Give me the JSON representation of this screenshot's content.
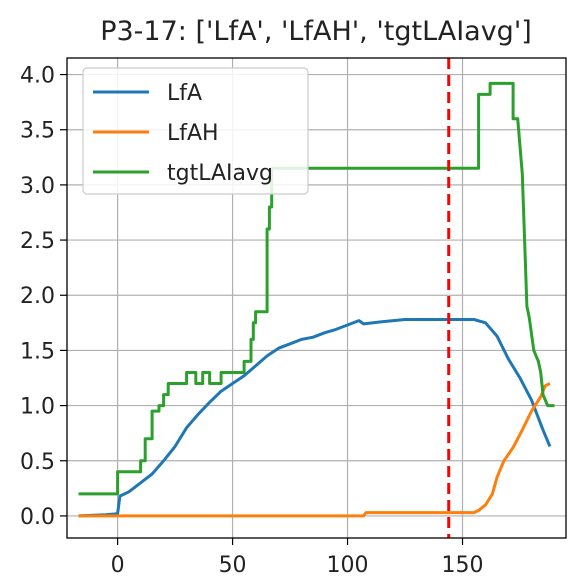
{
  "chart_data": {
    "type": "line",
    "title": "P3-17: ['LfA', 'LfAH', 'tgtLAIavg']",
    "xlabel": "",
    "ylabel": "",
    "xlim": [
      -22,
      195
    ],
    "ylim": [
      -0.2,
      4.15
    ],
    "x_ticks": [
      0,
      50,
      100,
      150
    ],
    "x_tick_labels": [
      "0",
      "50",
      "100",
      "150"
    ],
    "y_ticks": [
      0.0,
      0.5,
      1.0,
      1.5,
      2.0,
      2.5,
      3.0,
      3.5,
      4.0
    ],
    "y_tick_labels": [
      "0.0",
      "0.5",
      "1.0",
      "1.5",
      "2.0",
      "2.5",
      "3.0",
      "3.5",
      "4.0"
    ],
    "grid": true,
    "legend_position": "top-left",
    "vline": {
      "x": 144,
      "color": "#ff0000",
      "style": "dashed"
    },
    "series": [
      {
        "name": "LfA",
        "color": "#1f77b4",
        "points": [
          [
            -17,
            0.0
          ],
          [
            -5,
            0.01
          ],
          [
            0,
            0.02
          ],
          [
            1,
            0.18
          ],
          [
            5,
            0.22
          ],
          [
            10,
            0.3
          ],
          [
            15,
            0.38
          ],
          [
            20,
            0.5
          ],
          [
            25,
            0.63
          ],
          [
            30,
            0.8
          ],
          [
            35,
            0.92
          ],
          [
            40,
            1.03
          ],
          [
            45,
            1.13
          ],
          [
            50,
            1.2
          ],
          [
            55,
            1.27
          ],
          [
            60,
            1.36
          ],
          [
            65,
            1.45
          ],
          [
            70,
            1.52
          ],
          [
            75,
            1.56
          ],
          [
            80,
            1.6
          ],
          [
            85,
            1.62
          ],
          [
            90,
            1.66
          ],
          [
            95,
            1.69
          ],
          [
            100,
            1.73
          ],
          [
            105,
            1.77
          ],
          [
            107,
            1.74
          ],
          [
            115,
            1.76
          ],
          [
            125,
            1.78
          ],
          [
            135,
            1.78
          ],
          [
            145,
            1.78
          ],
          [
            155,
            1.78
          ],
          [
            160,
            1.75
          ],
          [
            165,
            1.63
          ],
          [
            170,
            1.42
          ],
          [
            175,
            1.25
          ],
          [
            180,
            1.05
          ],
          [
            185,
            0.78
          ],
          [
            188,
            0.63
          ]
        ]
      },
      {
        "name": "LfAH",
        "color": "#ff7f0e",
        "points": [
          [
            -17,
            0.0
          ],
          [
            50,
            0.0
          ],
          [
            100,
            0.0
          ],
          [
            107,
            0.0
          ],
          [
            108,
            0.03
          ],
          [
            130,
            0.03
          ],
          [
            155,
            0.03
          ],
          [
            157,
            0.05
          ],
          [
            160,
            0.1
          ],
          [
            163,
            0.2
          ],
          [
            165,
            0.35
          ],
          [
            168,
            0.5
          ],
          [
            172,
            0.62
          ],
          [
            176,
            0.78
          ],
          [
            180,
            0.95
          ],
          [
            184,
            1.08
          ],
          [
            186,
            1.18
          ],
          [
            188,
            1.2
          ]
        ]
      },
      {
        "name": "tgtLAIavg",
        "color": "#2ca02c",
        "points": [
          [
            -17,
            0.2
          ],
          [
            0,
            0.2
          ],
          [
            0,
            0.4
          ],
          [
            10,
            0.4
          ],
          [
            10,
            0.5
          ],
          [
            12,
            0.5
          ],
          [
            12,
            0.7
          ],
          [
            15,
            0.7
          ],
          [
            15,
            0.95
          ],
          [
            18,
            0.95
          ],
          [
            18,
            1.0
          ],
          [
            20,
            1.0
          ],
          [
            20,
            1.1
          ],
          [
            22,
            1.1
          ],
          [
            22,
            1.2
          ],
          [
            30,
            1.2
          ],
          [
            30,
            1.3
          ],
          [
            34,
            1.3
          ],
          [
            34,
            1.2
          ],
          [
            37,
            1.2
          ],
          [
            37,
            1.3
          ],
          [
            40,
            1.3
          ],
          [
            40,
            1.2
          ],
          [
            45,
            1.2
          ],
          [
            45,
            1.3
          ],
          [
            55,
            1.3
          ],
          [
            55,
            1.4
          ],
          [
            58,
            1.4
          ],
          [
            58,
            1.6
          ],
          [
            59,
            1.6
          ],
          [
            59,
            1.75
          ],
          [
            60,
            1.75
          ],
          [
            60,
            1.85
          ],
          [
            65,
            1.85
          ],
          [
            65,
            2.6
          ],
          [
            66,
            2.6
          ],
          [
            66,
            2.8
          ],
          [
            67,
            2.8
          ],
          [
            67,
            3.15
          ],
          [
            125,
            3.15
          ],
          [
            145,
            3.15
          ],
          [
            157,
            3.15
          ],
          [
            157,
            3.82
          ],
          [
            162,
            3.82
          ],
          [
            162,
            3.92
          ],
          [
            172,
            3.92
          ],
          [
            172,
            3.6
          ],
          [
            174,
            3.6
          ],
          [
            176,
            3.1
          ],
          [
            177,
            2.5
          ],
          [
            178,
            1.9
          ],
          [
            179,
            1.8
          ],
          [
            181,
            1.5
          ],
          [
            183,
            1.4
          ],
          [
            184,
            1.3
          ],
          [
            185,
            1.1
          ],
          [
            187,
            1.0
          ],
          [
            190,
            1.0
          ]
        ]
      }
    ]
  }
}
